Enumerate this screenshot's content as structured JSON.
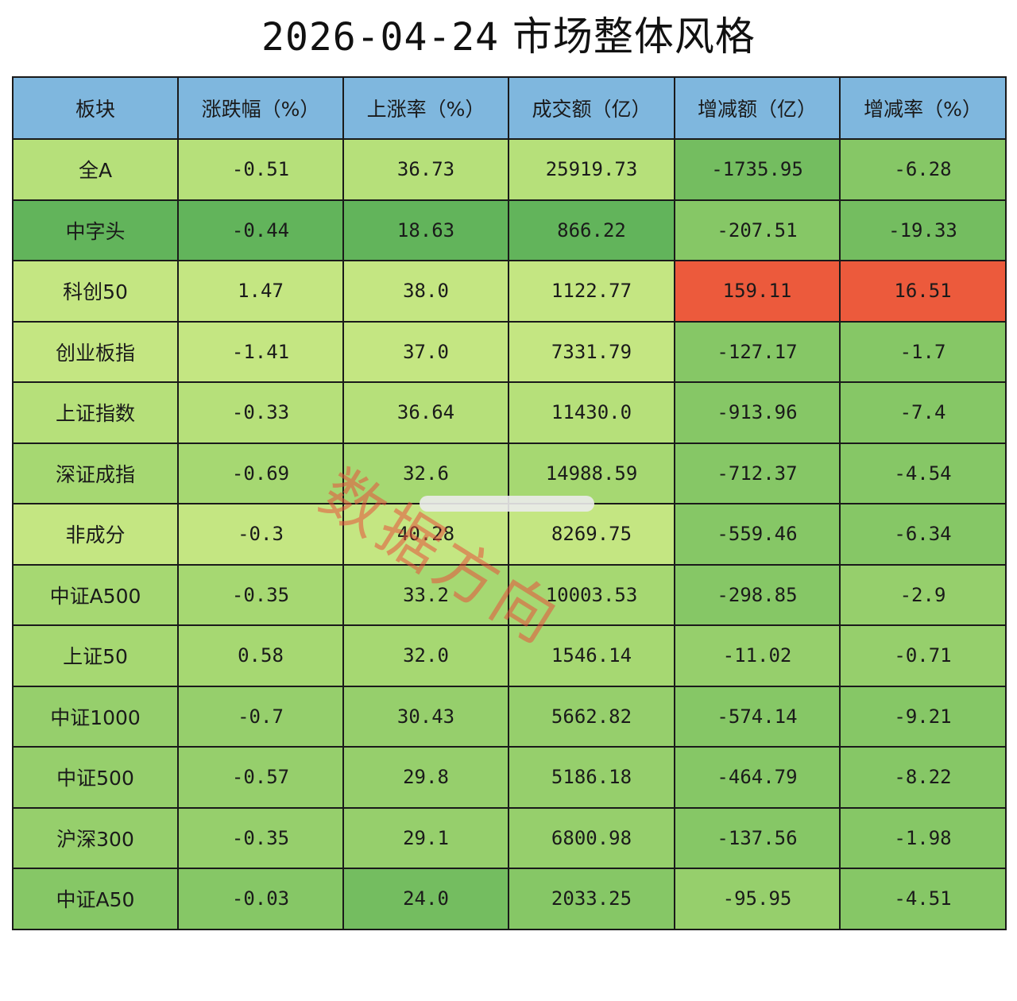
{
  "title": {
    "date": "2026-04-24",
    "text": "市场整体风格"
  },
  "watermark": "数据方向",
  "columns": [
    "板块",
    "涨跌幅（%）",
    "上涨率（%）",
    "成交额（亿）",
    "增减额（亿）",
    "增减率（%）"
  ],
  "rows": [
    {
      "name": "全A",
      "change": "-0.51",
      "rise_rate": "36.73",
      "turnover": "25919.73",
      "delta_amount": "-1735.95",
      "delta_rate": "-6.28"
    },
    {
      "name": "中字头",
      "change": "-0.44",
      "rise_rate": "18.63",
      "turnover": "866.22",
      "delta_amount": "-207.51",
      "delta_rate": "-19.33"
    },
    {
      "name": "科创50",
      "change": "1.47",
      "rise_rate": "38.0",
      "turnover": "1122.77",
      "delta_amount": "159.11",
      "delta_rate": "16.51"
    },
    {
      "name": "创业板指",
      "change": "-1.41",
      "rise_rate": "37.0",
      "turnover": "7331.79",
      "delta_amount": "-127.17",
      "delta_rate": "-1.7"
    },
    {
      "name": "上证指数",
      "change": "-0.33",
      "rise_rate": "36.64",
      "turnover": "11430.0",
      "delta_amount": "-913.96",
      "delta_rate": "-7.4"
    },
    {
      "name": "深证成指",
      "change": "-0.69",
      "rise_rate": "32.6",
      "turnover": "14988.59",
      "delta_amount": "-712.37",
      "delta_rate": "-4.54"
    },
    {
      "name": "非成分",
      "change": "-0.3",
      "rise_rate": "40.28",
      "turnover": "8269.75",
      "delta_amount": "-559.46",
      "delta_rate": "-6.34"
    },
    {
      "name": "中证A500",
      "change": "-0.35",
      "rise_rate": "33.2",
      "turnover": "10003.53",
      "delta_amount": "-298.85",
      "delta_rate": "-2.9"
    },
    {
      "name": "上证50",
      "change": "0.58",
      "rise_rate": "32.0",
      "turnover": "1546.14",
      "delta_amount": "-11.02",
      "delta_rate": "-0.71"
    },
    {
      "name": "中证1000",
      "change": "-0.7",
      "rise_rate": "30.43",
      "turnover": "5662.82",
      "delta_amount": "-574.14",
      "delta_rate": "-9.21"
    },
    {
      "name": "中证500",
      "change": "-0.57",
      "rise_rate": "29.8",
      "turnover": "5186.18",
      "delta_amount": "-464.79",
      "delta_rate": "-8.22"
    },
    {
      "name": "沪深300",
      "change": "-0.35",
      "rise_rate": "29.1",
      "turnover": "6800.98",
      "delta_amount": "-137.56",
      "delta_rate": "-1.98"
    },
    {
      "name": "中证A50",
      "change": "-0.03",
      "rise_rate": "24.0",
      "turnover": "2033.25",
      "delta_amount": "-95.95",
      "delta_rate": "-4.51"
    }
  ]
}
